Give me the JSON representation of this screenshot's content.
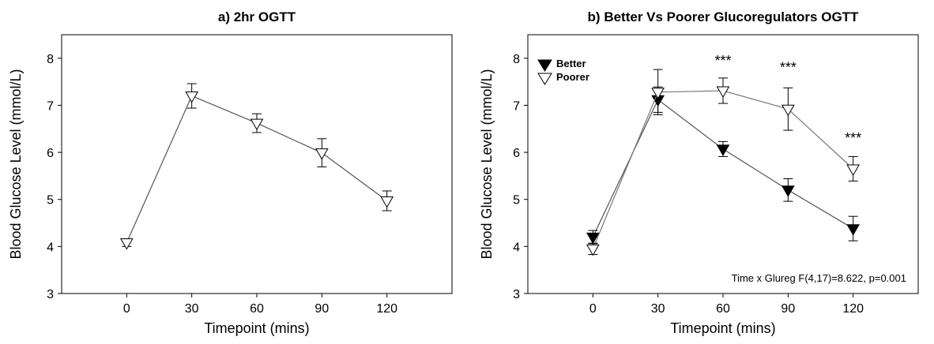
{
  "chart_data": [
    {
      "type": "line",
      "title": "a) 2hr OGTT",
      "xlabel": "Timepoint (mins)",
      "ylabel": "Blood Glucose Level (mmol/L)",
      "x": [
        0,
        30,
        60,
        90,
        120
      ],
      "xticks": [
        "0",
        "30",
        "60",
        "90",
        "120"
      ],
      "yticks": [
        "3",
        "4",
        "5",
        "6",
        "7",
        "8"
      ],
      "xlim": [
        -30,
        150
      ],
      "ylim": [
        3,
        8.5
      ],
      "series": [
        {
          "values": [
            4.08,
            7.2,
            6.62,
            5.99,
            4.97
          ],
          "err_up": [
            0.08,
            0.26,
            0.2,
            0.3,
            0.21
          ],
          "err_down": [
            0.08,
            0.26,
            0.2,
            0.3,
            0.21
          ],
          "marker": "open-triangle-down",
          "color": "#000000",
          "line_color": "#555555"
        }
      ],
      "grid": false,
      "legend": null
    },
    {
      "type": "line",
      "title": "b) Better Vs Poorer Glucoregulators OGTT",
      "xlabel": "Timepoint (mins)",
      "ylabel": "Blood Glucose Level (mmol/L)",
      "x": [
        0,
        30,
        60,
        90,
        120
      ],
      "xticks": [
        "0",
        "30",
        "60",
        "90",
        "120"
      ],
      "yticks": [
        "3",
        "4",
        "5",
        "6",
        "7",
        "8"
      ],
      "xlim": [
        -30,
        150
      ],
      "ylim": [
        3,
        8.5
      ],
      "series": [
        {
          "name": "Better",
          "values": [
            4.2,
            7.12,
            6.07,
            5.2,
            4.38
          ],
          "err_up": [
            0.14,
            0.27,
            0.16,
            0.24,
            0.26
          ],
          "err_down": [
            0.14,
            0.27,
            0.16,
            0.24,
            0.26
          ],
          "marker": "filled-triangle-down",
          "color": "#000000",
          "line_color": "#555555"
        },
        {
          "name": "Poorer",
          "values": [
            3.95,
            7.28,
            7.31,
            6.92,
            5.65
          ],
          "err_up": [
            0.12,
            0.48,
            0.27,
            0.45,
            0.26
          ],
          "err_down": [
            0.12,
            0.48,
            0.27,
            0.45,
            0.26
          ],
          "marker": "open-triangle-down",
          "color": "#000000",
          "line_color": "#777777"
        }
      ],
      "significance": [
        {
          "x": 60,
          "y": 7.85,
          "label": "***"
        },
        {
          "x": 90,
          "y": 7.7,
          "label": "***"
        },
        {
          "x": 120,
          "y": 6.2,
          "label": "***"
        }
      ],
      "annotation": "Time x Glureg F(4,17)=8.622, p=0.001",
      "legend": "top-left",
      "grid": false
    }
  ]
}
